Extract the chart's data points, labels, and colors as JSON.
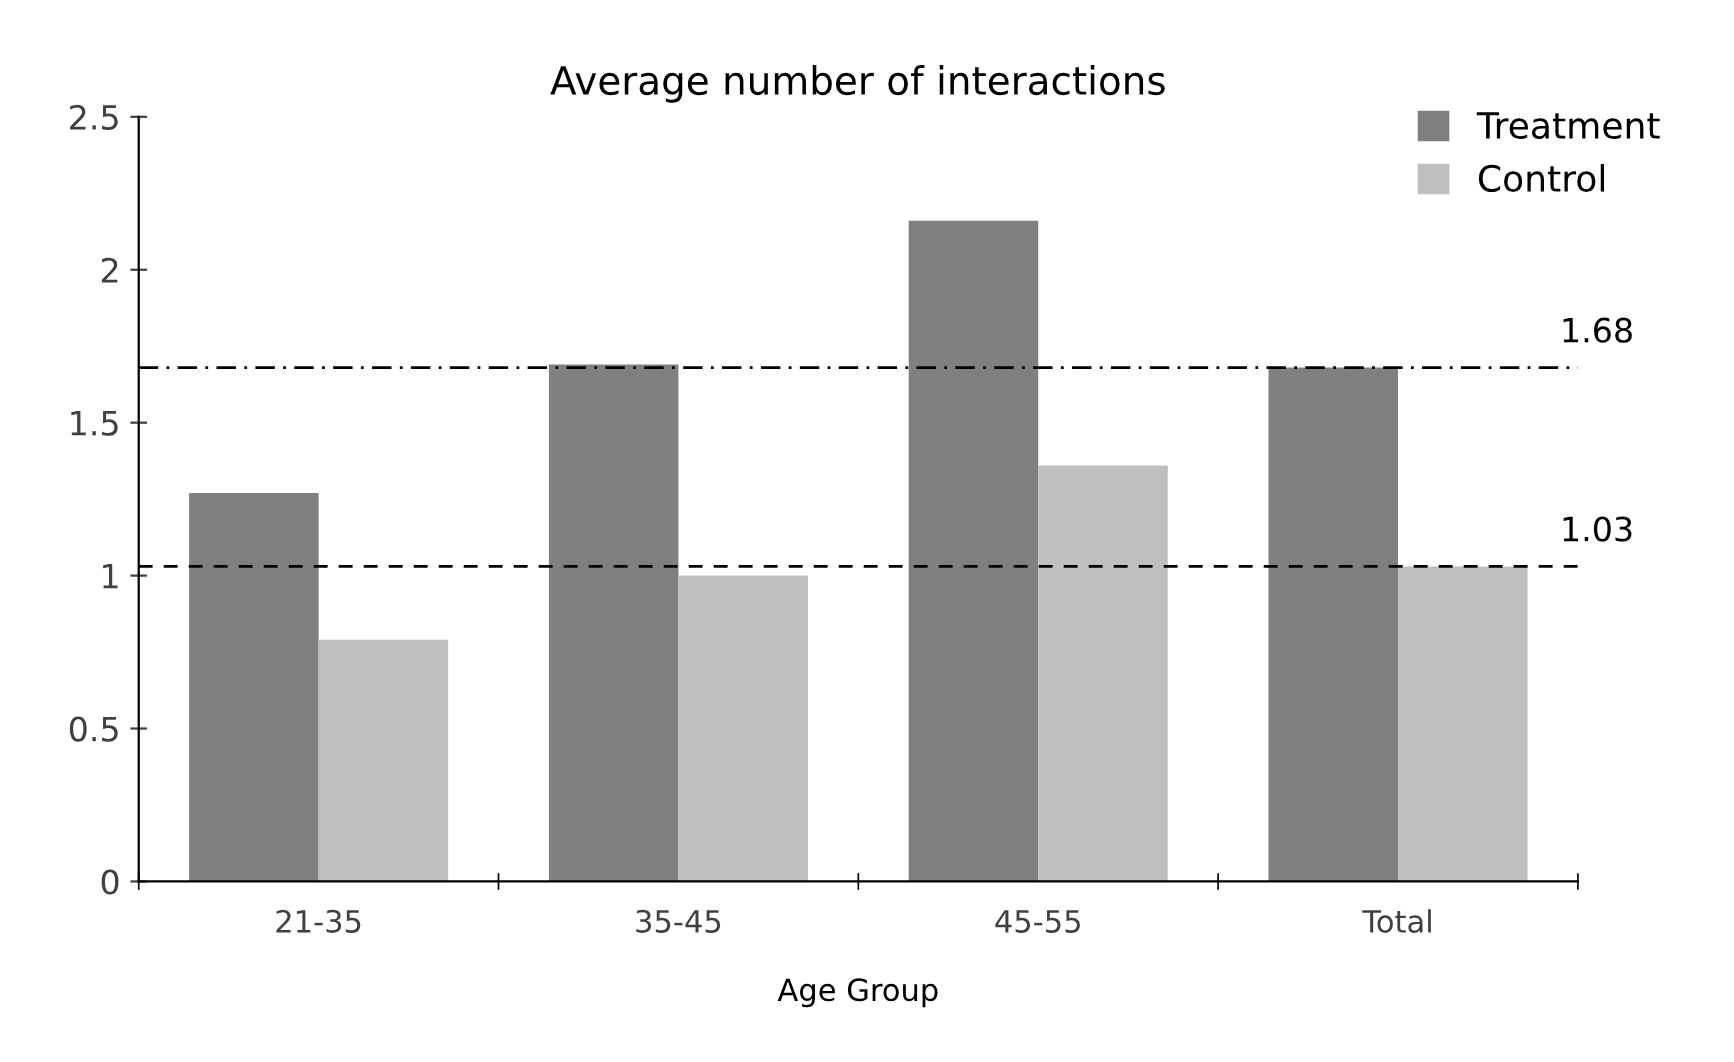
{
  "chart_data": {
    "type": "bar",
    "title": "Average number of interactions",
    "xlabel": "Age Group",
    "categories": [
      "21-35",
      "35-45",
      "45-55",
      "Total"
    ],
    "series": [
      {
        "name": "Treatment",
        "color": "#808080",
        "values": [
          1.27,
          1.69,
          2.16,
          1.68
        ]
      },
      {
        "name": "Control",
        "color": "#bfbfbf",
        "values": [
          0.79,
          1.0,
          1.36,
          1.03
        ]
      }
    ],
    "ylim": [
      0,
      2.5
    ],
    "yticks": [
      0,
      0.5,
      1,
      1.5,
      2,
      2.5
    ],
    "ref_lines": [
      {
        "axis": "y",
        "value": 1.68,
        "label": "1.68",
        "line_style": "dashdot",
        "color": "#000000"
      },
      {
        "axis": "y",
        "value": 1.03,
        "label": "1.03",
        "line_style": "dashed",
        "color": "#000000"
      }
    ],
    "legend": "top right",
    "grid": false
  }
}
